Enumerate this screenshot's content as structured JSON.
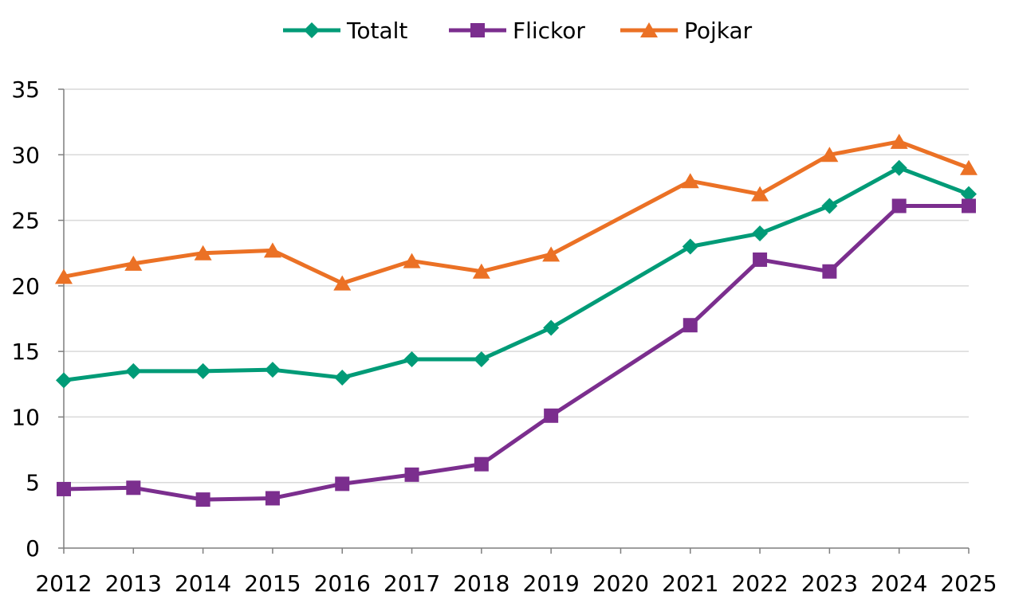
{
  "chart_data": {
    "type": "line",
    "title": "",
    "xlabel": "",
    "ylabel": "",
    "x": [
      "2012",
      "2013",
      "2014",
      "2015",
      "2016",
      "2017",
      "2018",
      "2019",
      "2020",
      "2021",
      "2022",
      "2023",
      "2024",
      "2025"
    ],
    "ylim": [
      0,
      35
    ],
    "yticks": [
      0,
      5,
      10,
      15,
      20,
      25,
      30,
      35
    ],
    "grid": true,
    "legend_position": "top",
    "series": [
      {
        "name": "Totalt",
        "color": "#009B77",
        "marker": "diamond",
        "values": [
          12.8,
          13.5,
          13.5,
          13.6,
          13.0,
          14.4,
          14.4,
          16.8,
          null,
          23.0,
          24.0,
          26.1,
          29.0,
          27.0
        ]
      },
      {
        "name": "Flickor",
        "color": "#7B2E8E",
        "marker": "square",
        "values": [
          4.5,
          4.6,
          3.7,
          3.8,
          4.9,
          5.6,
          6.4,
          10.1,
          null,
          17.0,
          22.0,
          21.1,
          26.1,
          26.1
        ]
      },
      {
        "name": "Pojkar",
        "color": "#EB7125",
        "marker": "triangle",
        "values": [
          20.7,
          21.7,
          22.5,
          22.7,
          20.2,
          21.9,
          21.1,
          22.4,
          null,
          28.0,
          27.0,
          30.0,
          31.0,
          29.0
        ]
      }
    ]
  }
}
